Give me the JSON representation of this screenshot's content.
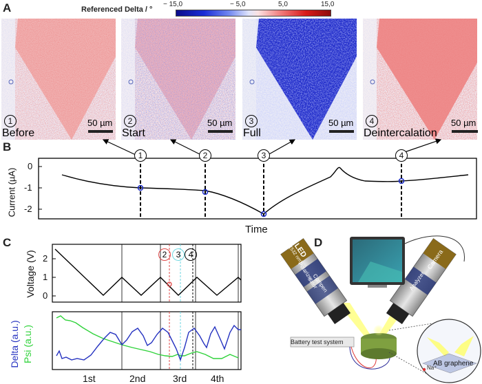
{
  "panel_letters": {
    "a": "A",
    "b": "B",
    "c": "C",
    "d": "D"
  },
  "colorbar": {
    "title": "Referenced Delta / °",
    "ticks": [
      "− 15,0",
      "− 5,0",
      "5,0",
      "15,0"
    ]
  },
  "micrographs": [
    {
      "step": "1",
      "label": "Before",
      "scale": "50 µm"
    },
    {
      "step": "2",
      "label": "Start",
      "scale": "50 µm"
    },
    {
      "step": "3",
      "label": "Full",
      "scale": "50 µm"
    },
    {
      "step": "4",
      "label": "Deintercalation",
      "scale": "50 µm"
    }
  ],
  "panel_b": {
    "ylabel": "Current (µA)",
    "xlabel": "Time",
    "yticks": [
      "0",
      "-1",
      "-2"
    ],
    "markers": [
      "1",
      "2",
      "3",
      "4"
    ]
  },
  "panel_c": {
    "voltage_ylabel": "Voltage (V)",
    "voltage_yticks": [
      "2",
      "1",
      "0"
    ],
    "delta_label": "Delta (a.u.)",
    "psi_label": "Psi (a.u.)",
    "cycles": [
      "1st",
      "2nd",
      "3rd",
      "4th"
    ],
    "markers": [
      "2",
      "3",
      "4"
    ]
  },
  "panel_d": {
    "led_label": "LED",
    "led_sub": "(532 nm)",
    "polarizer": "Polarizer",
    "compensator": "Compen sator",
    "analyzer": "Analyzer",
    "camera": "Camera",
    "battery": "Battery test system",
    "graphene": "AB graphene",
    "ion": "Na⁺"
  },
  "chart_data": [
    {
      "type": "line",
      "ylabel": "Current (µA)",
      "xlabel": "Time",
      "ylim": [
        -2.4,
        0.3
      ],
      "series": [
        {
          "values": [
            -0.3,
            -0.6,
            -0.85,
            -1.0,
            -1.02,
            -1.03,
            -1.04,
            -1.04,
            -1.05,
            -1.15,
            -1.35,
            -1.65,
            -1.95,
            -2.2,
            -1.9,
            -1.5,
            -1.15,
            -0.85,
            -0.55,
            -0.3,
            -0.05,
            0.05,
            -0.3,
            -0.55,
            -0.65,
            -0.62,
            -0.52,
            -0.4,
            -0.3,
            -0.25
          ]
        }
      ]
    },
    {
      "type": "line",
      "ylabel": "Voltage (V)",
      "xlabel": "",
      "ylim": [
        -0.2,
        2.7
      ],
      "series": [
        {
          "values": [
            2.4,
            1.2,
            0.05,
            1.0,
            0.05,
            1.0,
            0.05,
            1.0,
            0.05,
            1.0,
            0.05,
            1.0
          ]
        }
      ]
    }
  ]
}
